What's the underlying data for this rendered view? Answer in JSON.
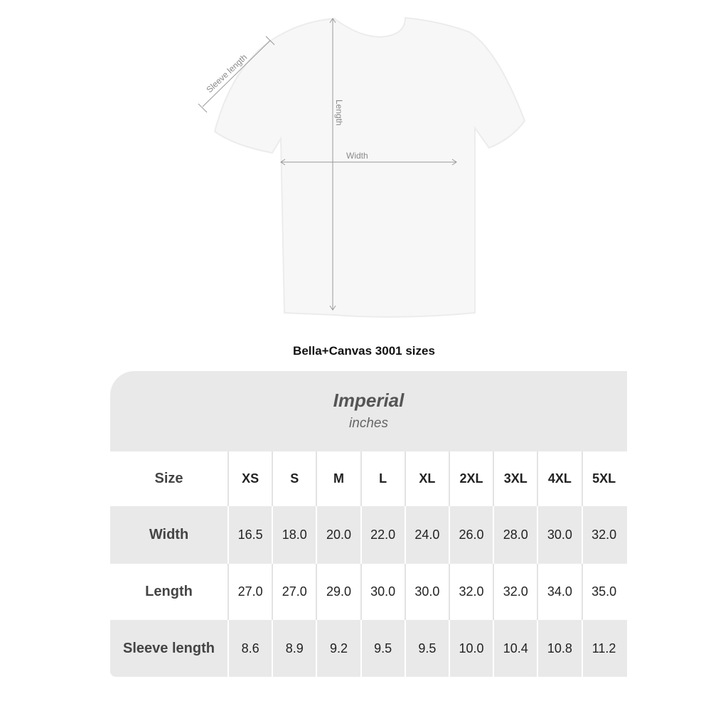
{
  "diagram": {
    "sleeve_label": "Sleeve length",
    "length_label": "Length",
    "width_label": "Width"
  },
  "title": "Bella+Canvas 3001 sizes",
  "table": {
    "heading": "Imperial",
    "unit": "inches",
    "size_label": "Size",
    "sizes": [
      "XS",
      "S",
      "M",
      "L",
      "XL",
      "2XL",
      "3XL",
      "4XL",
      "5XL"
    ],
    "rows": [
      {
        "label": "Width",
        "values": [
          "16.5",
          "18.0",
          "20.0",
          "22.0",
          "24.0",
          "26.0",
          "28.0",
          "30.0",
          "32.0"
        ]
      },
      {
        "label": "Length",
        "values": [
          "27.0",
          "27.0",
          "29.0",
          "30.0",
          "30.0",
          "32.0",
          "32.0",
          "34.0",
          "35.0"
        ]
      },
      {
        "label": "Sleeve length",
        "values": [
          "8.6",
          "8.9",
          "9.2",
          "9.5",
          "9.5",
          "10.0",
          "10.4",
          "10.8",
          "11.2"
        ]
      }
    ]
  }
}
